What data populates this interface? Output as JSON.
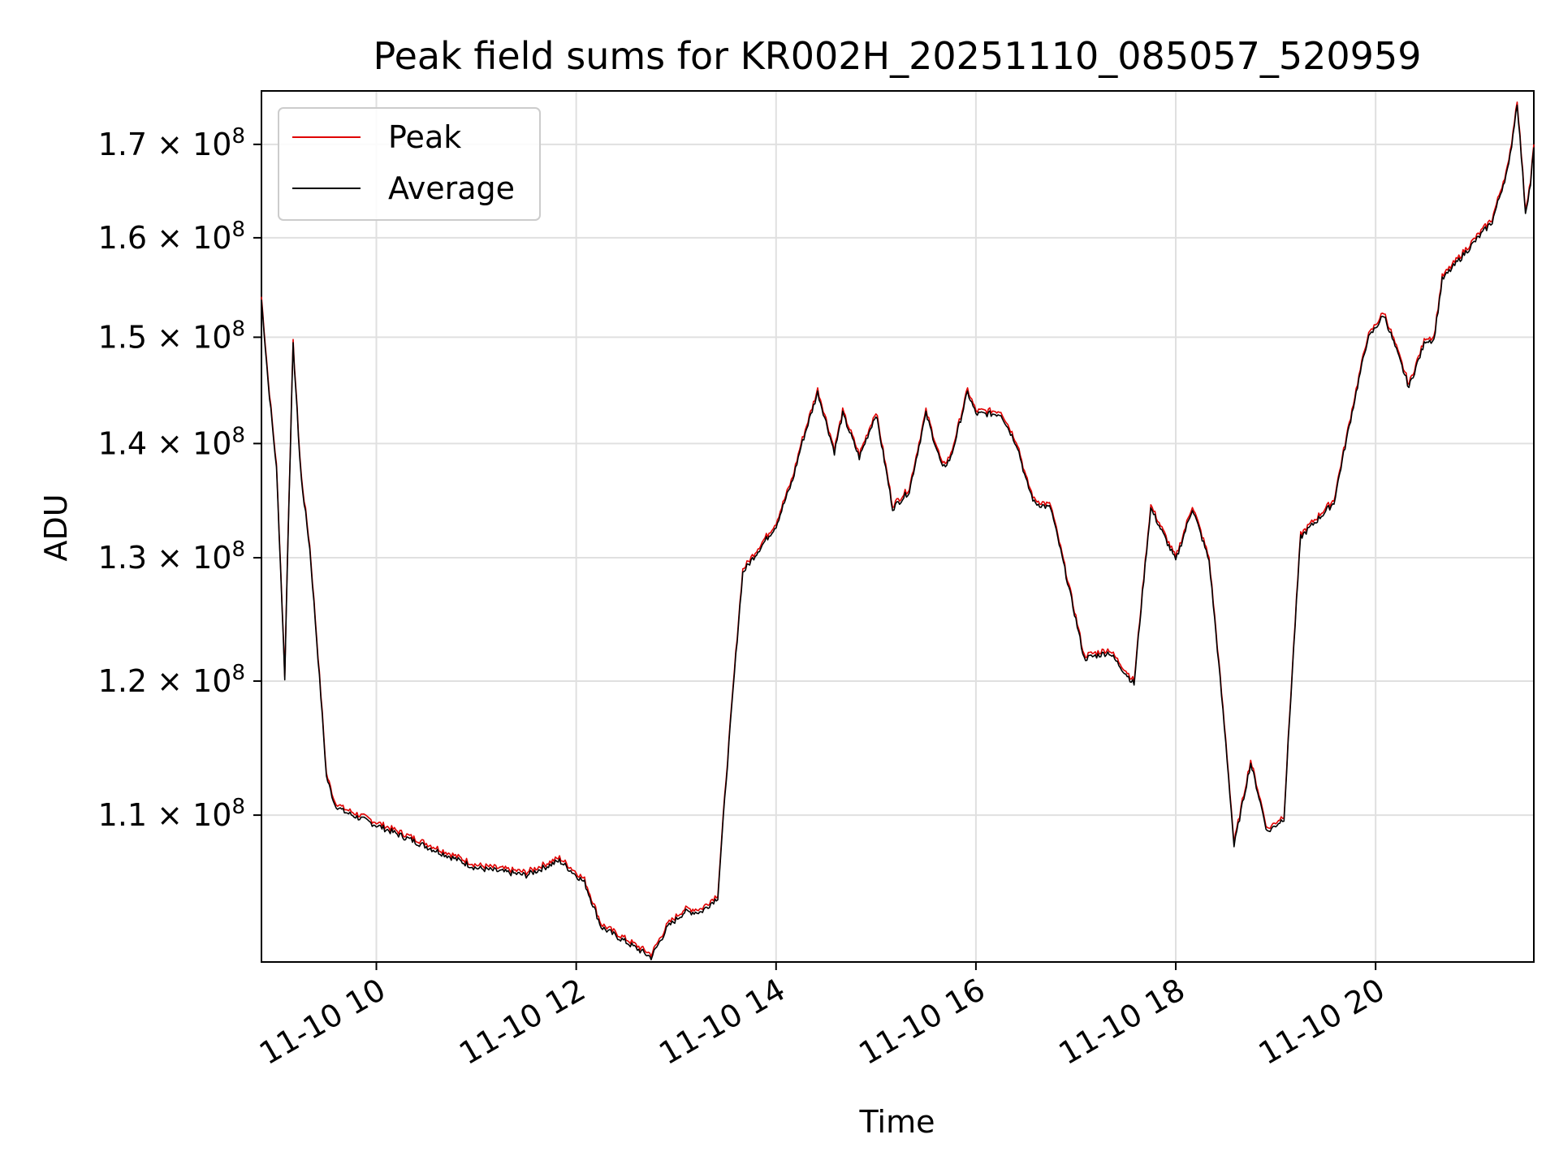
{
  "chart_data": {
    "type": "line",
    "title": "Peak field sums for KR002H_20251110_085057_520959",
    "xlabel": "Time",
    "ylabel": "ADU",
    "y_scale": "log",
    "grid": true,
    "legend_position": "top-left",
    "xlim": [
      "2025-11-10 08:51",
      "2025-11-10 21:35"
    ],
    "ylim": [
      100000000,
      176000000
    ],
    "x_ticks": [
      {
        "value": "2025-11-10 10:00",
        "label": "11-10 10"
      },
      {
        "value": "2025-11-10 12:00",
        "label": "11-10 12"
      },
      {
        "value": "2025-11-10 14:00",
        "label": "11-10 14"
      },
      {
        "value": "2025-11-10 16:00",
        "label": "11-10 16"
      },
      {
        "value": "2025-11-10 18:00",
        "label": "11-10 18"
      },
      {
        "value": "2025-11-10 20:00",
        "label": "11-10 20"
      }
    ],
    "y_ticks": [
      {
        "value": 110000000,
        "mantissa": "1.1",
        "label": "1.1 × 10⁸"
      },
      {
        "value": 120000000,
        "mantissa": "1.2",
        "label": "1.2 × 10⁸"
      },
      {
        "value": 130000000,
        "mantissa": "1.3",
        "label": "1.3 × 10⁸"
      },
      {
        "value": 140000000,
        "mantissa": "1.4",
        "label": "1.4 × 10⁸"
      },
      {
        "value": 150000000,
        "mantissa": "1.5",
        "label": "1.5 × 10⁸"
      },
      {
        "value": 160000000,
        "mantissa": "1.6",
        "label": "1.6 × 10⁸"
      },
      {
        "value": 170000000,
        "mantissa": "1.7",
        "label": "1.7 × 10⁸"
      }
    ],
    "series": [
      {
        "name": "Peak",
        "color": "#e00000"
      },
      {
        "name": "Average",
        "color": "#000000"
      }
    ],
    "x": [
      "2025-11-10 08:51",
      "2025-11-10 08:55",
      "2025-11-10 09:00",
      "2025-11-10 09:05",
      "2025-11-10 09:10",
      "2025-11-10 09:14",
      "2025-11-10 09:15",
      "2025-11-10 09:20",
      "2025-11-10 09:30",
      "2025-11-10 09:35",
      "2025-11-10 09:40",
      "2025-11-10 09:50",
      "2025-11-10 10:00",
      "2025-11-10 10:30",
      "2025-11-10 10:40",
      "2025-11-10 11:00",
      "2025-11-10 11:30",
      "2025-11-10 11:50",
      "2025-11-10 12:05",
      "2025-11-10 12:15",
      "2025-11-10 12:30",
      "2025-11-10 12:45",
      "2025-11-10 12:55",
      "2025-11-10 13:05",
      "2025-11-10 13:15",
      "2025-11-10 13:25",
      "2025-11-10 13:40",
      "2025-11-10 13:50",
      "2025-11-10 14:00",
      "2025-11-10 14:10",
      "2025-11-10 14:15",
      "2025-11-10 14:25",
      "2025-11-10 14:35",
      "2025-11-10 14:40",
      "2025-11-10 14:50",
      "2025-11-10 15:00",
      "2025-11-10 15:10",
      "2025-11-10 15:20",
      "2025-11-10 15:30",
      "2025-11-10 15:40",
      "2025-11-10 15:45",
      "2025-11-10 15:55",
      "2025-11-10 16:00",
      "2025-11-10 16:15",
      "2025-11-10 16:25",
      "2025-11-10 16:30",
      "2025-11-10 16:35",
      "2025-11-10 16:45",
      "2025-11-10 17:05",
      "2025-11-10 17:20",
      "2025-11-10 17:35",
      "2025-11-10 17:45",
      "2025-11-10 18:00",
      "2025-11-10 18:10",
      "2025-11-10 18:20",
      "2025-11-10 18:30",
      "2025-11-10 18:35",
      "2025-11-10 18:45",
      "2025-11-10 18:55",
      "2025-11-10 19:05",
      "2025-11-10 19:15",
      "2025-11-10 19:35",
      "2025-11-10 19:55",
      "2025-11-10 20:05",
      "2025-11-10 20:20",
      "2025-11-10 20:30",
      "2025-11-10 20:35",
      "2025-11-10 20:40",
      "2025-11-10 21:10",
      "2025-11-10 21:20",
      "2025-11-10 21:25",
      "2025-11-10 21:30",
      "2025-11-10 21:33",
      "2025-11-10 21:35"
    ],
    "values": [
      154000000,
      146000000,
      138000000,
      120500000,
      149500000,
      139000000,
      137000000,
      131000000,
      113000000,
      111000000,
      110500000,
      110000000,
      109500000,
      108000000,
      107500000,
      106500000,
      106000000,
      107000000,
      105500000,
      102500000,
      101500000,
      100500000,
      102500000,
      103500000,
      103500000,
      104500000,
      129000000,
      131000000,
      133000000,
      137000000,
      140000000,
      145000000,
      139500000,
      143000000,
      139000000,
      143000000,
      134500000,
      136000000,
      143000000,
      138000000,
      139000000,
      145000000,
      143000000,
      143000000,
      140000000,
      137000000,
      135000000,
      134500000,
      122000000,
      122500000,
      120000000,
      134500000,
      130000000,
      134500000,
      130000000,
      115500000,
      108000000,
      114000000,
      109000000,
      110000000,
      132000000,
      135000000,
      150000000,
      152500000,
      145500000,
      150000000,
      150000000,
      156000000,
      162000000,
      168000000,
      175000000,
      163000000,
      166000000,
      170000000
    ],
    "average_offset_fraction": 0.002
  }
}
